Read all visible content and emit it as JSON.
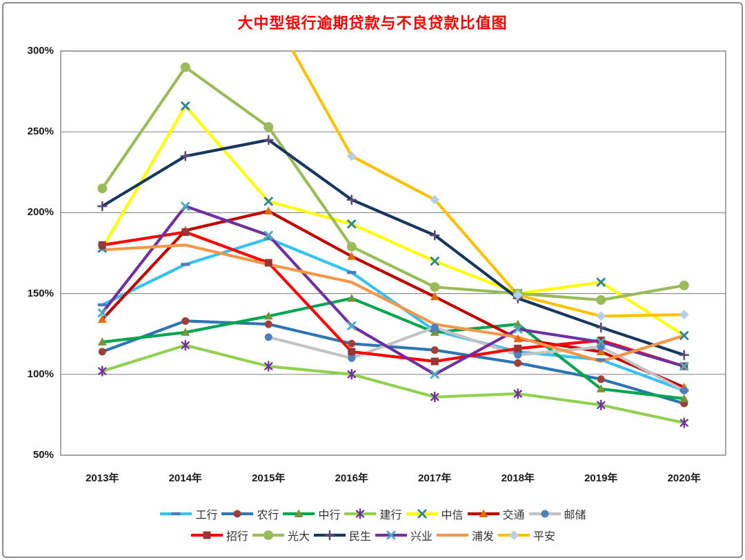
{
  "title": {
    "text": "大中型银行逾期贷款与不良贷款比值图",
    "color": "#FF0000"
  },
  "frame": {
    "border_color": "#8A8A8A",
    "background": "#FFFFFF"
  },
  "chart_data": {
    "type": "line",
    "categories": [
      "2013年",
      "2014年",
      "2015年",
      "2016年",
      "2017年",
      "2018年",
      "2019年",
      "2020年"
    ],
    "y_axis": {
      "unit": "%",
      "min": 50,
      "max": 300,
      "step": 50,
      "ticks": [
        {
          "label": "300%",
          "value": 300
        },
        {
          "label": "250%",
          "value": 250
        },
        {
          "label": "200%",
          "value": 200
        },
        {
          "label": "150%",
          "value": 150
        },
        {
          "label": "100%",
          "value": 100
        },
        {
          "label": "50%",
          "value": 50
        }
      ]
    },
    "grid": true,
    "legend_position": "bottom",
    "series": [
      {
        "key": "icbc",
        "name": "工行",
        "line_color": "#35C2F2",
        "marker": "dash",
        "marker_color": "#4A7EBB",
        "values": [
          143,
          168,
          184,
          163,
          127,
          114,
          109,
          90
        ]
      },
      {
        "key": "abc",
        "name": "农行",
        "line_color": "#2E75B6",
        "marker": "circle",
        "marker_color": "#9E4038",
        "values": [
          114,
          133,
          131,
          119,
          115,
          107,
          97,
          82
        ]
      },
      {
        "key": "boc",
        "name": "中行",
        "line_color": "#00A550",
        "marker": "triangle",
        "marker_color": "#77933C",
        "values": [
          120,
          126,
          136,
          147,
          126,
          131,
          91,
          85
        ]
      },
      {
        "key": "ccb",
        "name": "建行",
        "line_color": "#92D050",
        "marker": "asterisk",
        "marker_color": "#7030A0",
        "values": [
          102,
          118,
          105,
          100,
          86,
          88,
          81,
          70
        ]
      },
      {
        "key": "citic",
        "name": "中信",
        "line_color": "#FFFF00",
        "marker": "x",
        "marker_color": "#31859C",
        "values": [
          178,
          266,
          207,
          193,
          170,
          150,
          157,
          124
        ]
      },
      {
        "key": "bocom",
        "name": "交通",
        "line_color": "#C00000",
        "marker": "triangle",
        "marker_color": "#E26B0A",
        "values": [
          134,
          189,
          201,
          173,
          148,
          122,
          114,
          92
        ]
      },
      {
        "key": "psbc",
        "name": "邮储",
        "line_color": "#C3C3C3",
        "marker": "circle",
        "marker_color": "#4F81BD",
        "values": [
          null,
          null,
          123,
          110,
          129,
          112,
          117,
          90
        ]
      },
      {
        "key": "cmb",
        "name": "招行",
        "line_color": "#FF0000",
        "marker": "square",
        "marker_color": "#963634",
        "values": [
          180,
          188,
          169,
          114,
          108,
          116,
          121,
          105
        ]
      },
      {
        "key": "ceb",
        "name": "光大",
        "line_color": "#9BBB59",
        "marker": "circle",
        "marker_color": "#9BBB59",
        "values": [
          215,
          290,
          253,
          179,
          154,
          150,
          146,
          155
        ]
      },
      {
        "key": "minsheng",
        "name": "民生",
        "line_color": "#17375E",
        "marker": "plus",
        "marker_color": "#604A7B",
        "values": [
          204,
          235,
          245,
          208,
          186,
          147,
          129,
          112
        ]
      },
      {
        "key": "cib",
        "name": "兴业",
        "line_color": "#7030A0",
        "marker": "x",
        "marker_color": "#4BACC6",
        "values": [
          138,
          204,
          186,
          130,
          100,
          128,
          120,
          105
        ]
      },
      {
        "key": "spdb",
        "name": "浦发",
        "line_color": "#F79646",
        "marker": "none",
        "marker_color": "#F79646",
        "values": [
          177,
          180,
          168,
          157,
          131,
          123,
          108,
          124
        ]
      },
      {
        "key": "pingan",
        "name": "平安",
        "line_color": "#FFC000",
        "marker": "diamond",
        "marker_color": "#B9CDE5",
        "values": [
          null,
          null,
          327,
          235,
          208,
          149,
          136,
          137
        ]
      }
    ],
    "legend_rows": [
      [
        "icbc",
        "abc",
        "boc",
        "ccb",
        "citic",
        "bocom",
        "psbc"
      ],
      [
        "cmb",
        "ceb",
        "minsheng",
        "cib",
        "spdb",
        "pingan"
      ]
    ]
  }
}
